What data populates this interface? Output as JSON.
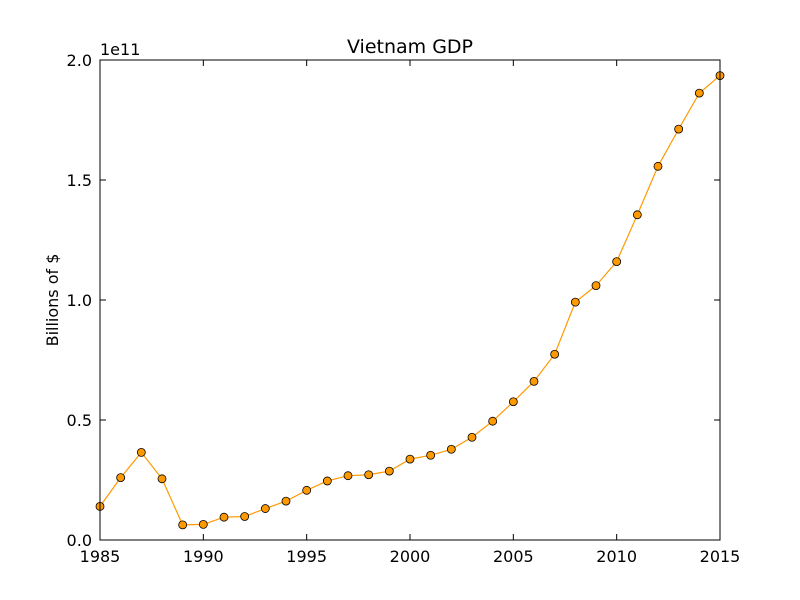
{
  "chart_data": {
    "type": "line",
    "title": "Vietnam GDP",
    "xlabel": "",
    "ylabel": "Billions of $",
    "offset_text": "1e11",
    "xlim": [
      1985,
      2015
    ],
    "ylim": [
      0,
      2.0
    ],
    "x_ticks": [
      "1985",
      "1990",
      "1995",
      "2000",
      "2005",
      "2010",
      "2015"
    ],
    "y_ticks": [
      "0.0",
      "0.5",
      "1.0",
      "1.5",
      "2.0"
    ],
    "grid": false,
    "legend": "none",
    "colors": {
      "line": "#ff9900",
      "marker_fill": "#ff9900",
      "marker_edge": "#000000"
    },
    "series": [
      {
        "x": [
          1985,
          1986,
          1987,
          1988,
          1989,
          1990,
          1991,
          1992,
          1993,
          1994,
          1995,
          1996,
          1997,
          1998,
          1999,
          2000,
          2001,
          2002,
          2003,
          2004,
          2005,
          2006,
          2007,
          2008,
          2009,
          2010,
          2011,
          2012,
          2013,
          2014,
          2015
        ],
        "y": [
          0.14,
          0.26,
          0.365,
          0.255,
          0.063,
          0.065,
          0.095,
          0.098,
          0.131,
          0.162,
          0.207,
          0.246,
          0.268,
          0.272,
          0.287,
          0.337,
          0.353,
          0.378,
          0.428,
          0.495,
          0.576,
          0.661,
          0.774,
          0.991,
          1.06,
          1.16,
          1.355,
          1.557,
          1.712,
          1.862,
          1.935
        ]
      }
    ]
  }
}
